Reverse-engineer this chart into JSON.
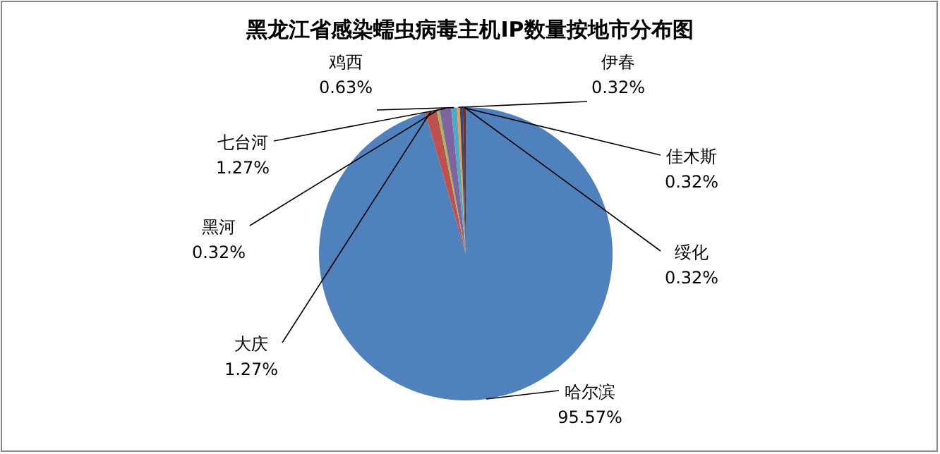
{
  "chart_data": {
    "type": "pie",
    "title": "黑龙江省感染蠕虫病毒主机IP数量按地市分布图",
    "categories": [
      "哈尔滨",
      "大庆",
      "黑河",
      "七台河",
      "鸡西",
      "伊春",
      "佳木斯",
      "绥化"
    ],
    "values": [
      95.57,
      1.27,
      0.32,
      1.27,
      0.63,
      0.32,
      0.32,
      0.32
    ],
    "colors": [
      "#4f81bd",
      "#c0504d",
      "#9bbb59",
      "#8064a2",
      "#4bacc6",
      "#f79646",
      "#2c4d75",
      "#772c2a"
    ],
    "value_labels": [
      "95.57%",
      "1.27%",
      "0.32%",
      "1.27%",
      "0.63%",
      "0.32%",
      "0.32%",
      "0.32%"
    ]
  }
}
